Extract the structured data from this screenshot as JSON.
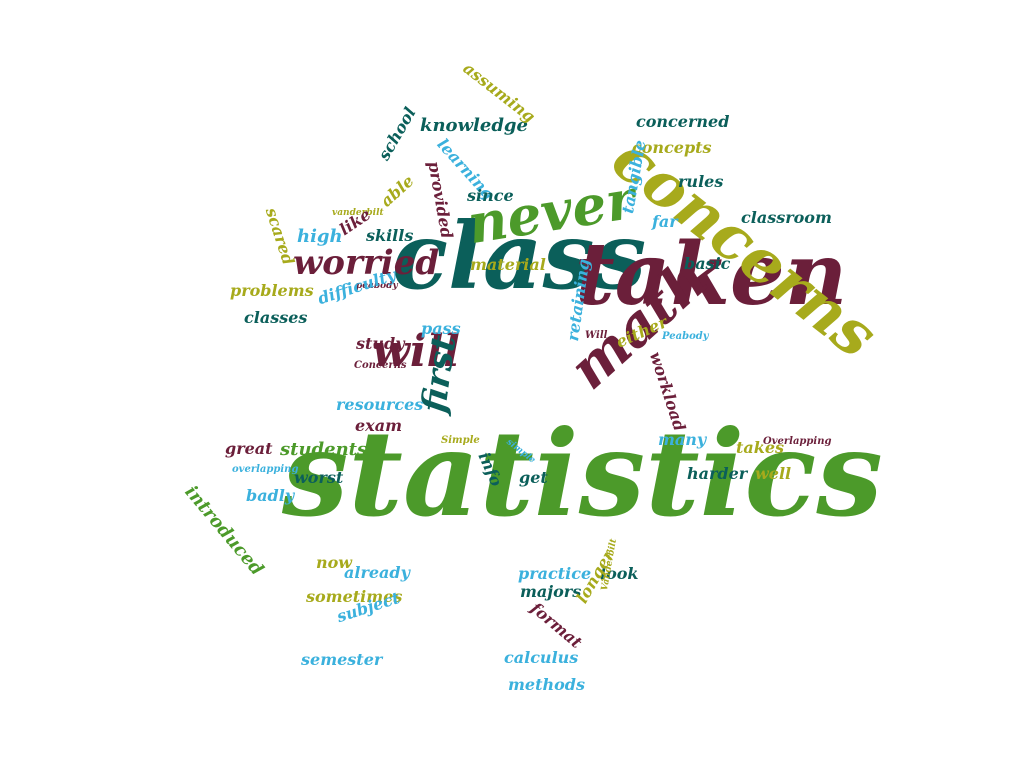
{
  "colors": {
    "green": "#4c9a2a",
    "maroon": "#6b1f3a",
    "teal": "#0b5f5a",
    "olive": "#a7aa1c",
    "sky": "#3bb1dd",
    "background": "#ffffff"
  },
  "words": [
    {
      "text": "statistics",
      "color": "green"
    },
    {
      "text": "class",
      "color": "teal"
    },
    {
      "text": "taken",
      "color": "maroon"
    },
    {
      "text": "concerns",
      "color": "olive"
    },
    {
      "text": "never",
      "color": "green"
    },
    {
      "text": "math",
      "color": "maroon"
    },
    {
      "text": "will",
      "color": "maroon"
    },
    {
      "text": "worried",
      "color": "maroon"
    },
    {
      "text": "first",
      "color": "teal"
    },
    {
      "text": "knowledge",
      "color": "teal"
    },
    {
      "text": "assuming",
      "color": "olive"
    },
    {
      "text": "concerned",
      "color": "teal"
    },
    {
      "text": "concepts",
      "color": "olive"
    },
    {
      "text": "rules",
      "color": "teal"
    },
    {
      "text": "learning",
      "color": "sky"
    },
    {
      "text": "provided",
      "color": "maroon"
    },
    {
      "text": "school",
      "color": "teal"
    },
    {
      "text": "since",
      "color": "teal"
    },
    {
      "text": "able",
      "color": "olive"
    },
    {
      "text": "vanderbilt",
      "color": "olive"
    },
    {
      "text": "scared",
      "color": "olive"
    },
    {
      "text": "high",
      "color": "sky"
    },
    {
      "text": "like",
      "color": "maroon"
    },
    {
      "text": "skills",
      "color": "teal"
    },
    {
      "text": "tangible",
      "color": "sky"
    },
    {
      "text": "far",
      "color": "sky"
    },
    {
      "text": "classroom",
      "color": "teal"
    },
    {
      "text": "material",
      "color": "olive"
    },
    {
      "text": "basic",
      "color": "teal"
    },
    {
      "text": "problems",
      "color": "olive"
    },
    {
      "text": "peabody",
      "color": "maroon"
    },
    {
      "text": "classes",
      "color": "teal"
    },
    {
      "text": "difficulty",
      "color": "sky"
    },
    {
      "text": "pass",
      "color": "sky"
    },
    {
      "text": "study",
      "color": "maroon"
    },
    {
      "text": "Concerns",
      "color": "maroon"
    },
    {
      "text": "retaining",
      "color": "sky"
    },
    {
      "text": "Will",
      "color": "maroon"
    },
    {
      "text": "either",
      "color": "olive"
    },
    {
      "text": "Peabody",
      "color": "sky"
    },
    {
      "text": "workload",
      "color": "maroon"
    },
    {
      "text": "resources",
      "color": "sky"
    },
    {
      "text": "exam",
      "color": "maroon"
    },
    {
      "text": "great",
      "color": "maroon"
    },
    {
      "text": "students",
      "color": "green"
    },
    {
      "text": "Simple",
      "color": "olive"
    },
    {
      "text": "simple",
      "color": "sky"
    },
    {
      "text": "info",
      "color": "teal"
    },
    {
      "text": "many",
      "color": "sky"
    },
    {
      "text": "takes",
      "color": "olive"
    },
    {
      "text": "Overlapping",
      "color": "maroon"
    },
    {
      "text": "overlapping",
      "color": "sky"
    },
    {
      "text": "worst",
      "color": "teal"
    },
    {
      "text": "get",
      "color": "teal"
    },
    {
      "text": "harder",
      "color": "teal"
    },
    {
      "text": "well",
      "color": "olive"
    },
    {
      "text": "badly",
      "color": "sky"
    },
    {
      "text": "introduced",
      "color": "green"
    },
    {
      "text": "now",
      "color": "olive"
    },
    {
      "text": "already",
      "color": "sky"
    },
    {
      "text": "practice",
      "color": "sky"
    },
    {
      "text": "look",
      "color": "teal"
    },
    {
      "text": "sometimes",
      "color": "olive"
    },
    {
      "text": "majors",
      "color": "teal"
    },
    {
      "text": "format",
      "color": "maroon"
    },
    {
      "text": "longer",
      "color": "olive"
    },
    {
      "text": "Vanderbilt",
      "color": "olive"
    },
    {
      "text": "subject",
      "color": "sky"
    },
    {
      "text": "semester",
      "color": "sky"
    },
    {
      "text": "calculus",
      "color": "sky"
    },
    {
      "text": "methods",
      "color": "sky"
    }
  ]
}
